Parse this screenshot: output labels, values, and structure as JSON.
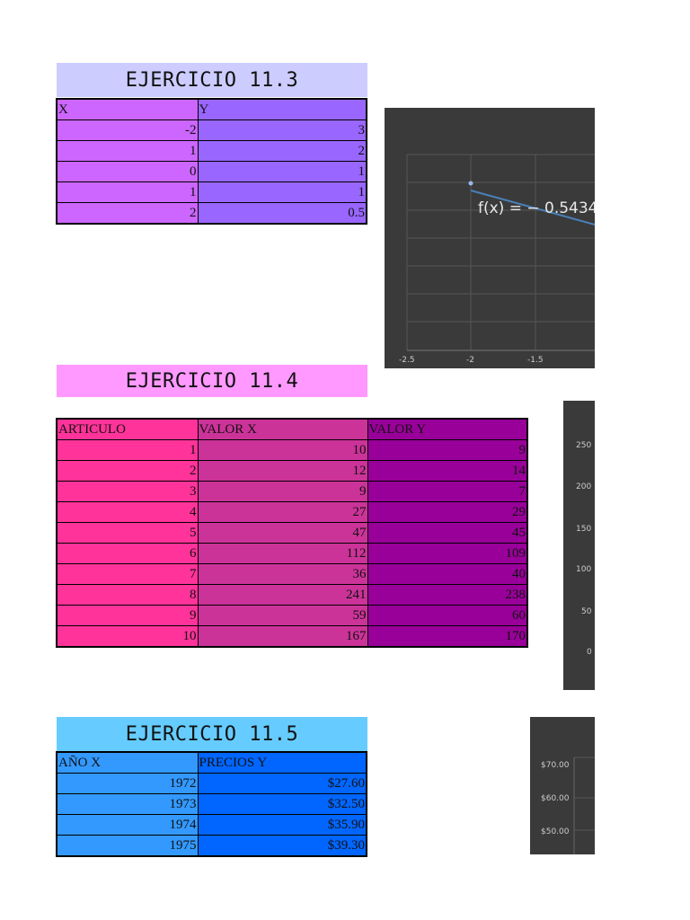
{
  "ex113": {
    "title": "EJERCICIO 11.3",
    "headers": [
      "X",
      "Y"
    ],
    "rows": [
      [
        "-2",
        "3"
      ],
      [
        "1",
        "2"
      ],
      [
        "0",
        "1"
      ],
      [
        "1",
        "1"
      ],
      [
        "2",
        "0.5"
      ]
    ],
    "colors": {
      "title_bg": "#ccccff",
      "col1": "#cc66ff",
      "col2": "#9966ff"
    }
  },
  "ex114": {
    "title": "EJERCICIO 11.4",
    "headers": [
      "ARTICULO",
      "VALOR X",
      "VALOR Y"
    ],
    "rows": [
      [
        "1",
        "10",
        "9"
      ],
      [
        "2",
        "12",
        "14"
      ],
      [
        "3",
        "9",
        "7"
      ],
      [
        "4",
        "27",
        "29"
      ],
      [
        "5",
        "47",
        "45"
      ],
      [
        "6",
        "112",
        "109"
      ],
      [
        "7",
        "36",
        "40"
      ],
      [
        "8",
        "241",
        "238"
      ],
      [
        "9",
        "59",
        "60"
      ],
      [
        "10",
        "167",
        "170"
      ]
    ],
    "colors": {
      "title_bg": "#ff99ff",
      "col1": "#ff3399",
      "col2": "#cc3399",
      "col3": "#990099"
    }
  },
  "ex115": {
    "title": "EJERCICIO 11.5",
    "headers": [
      "AÑO X",
      "PRECIOS Y"
    ],
    "rows": [
      [
        "1972",
        "$27.60"
      ],
      [
        "1973",
        "$32.50"
      ],
      [
        "1974",
        "$35.90"
      ],
      [
        "1975",
        "$39.30"
      ]
    ],
    "colors": {
      "title_bg": "#66ccff",
      "col1": "#3399ff",
      "col2": "#0066ff"
    }
  },
  "chart_data": [
    {
      "type": "scatter",
      "x_ticks": [
        "-2.5",
        "-2",
        "-1.5"
      ],
      "annotation": "f(x) = − 0.5434",
      "points": [
        {
          "x": -2,
          "y": 3
        }
      ],
      "xlim": [
        -2.5,
        -1.3
      ]
    },
    {
      "type": "scatter",
      "y_ticks": [
        "250",
        "200",
        "150",
        "100",
        "50",
        "0"
      ],
      "ylim": [
        0,
        250
      ]
    },
    {
      "type": "line",
      "y_ticks": [
        "$70.00",
        "$60.00",
        "$50.00"
      ],
      "ylim": [
        45,
        75
      ]
    }
  ]
}
